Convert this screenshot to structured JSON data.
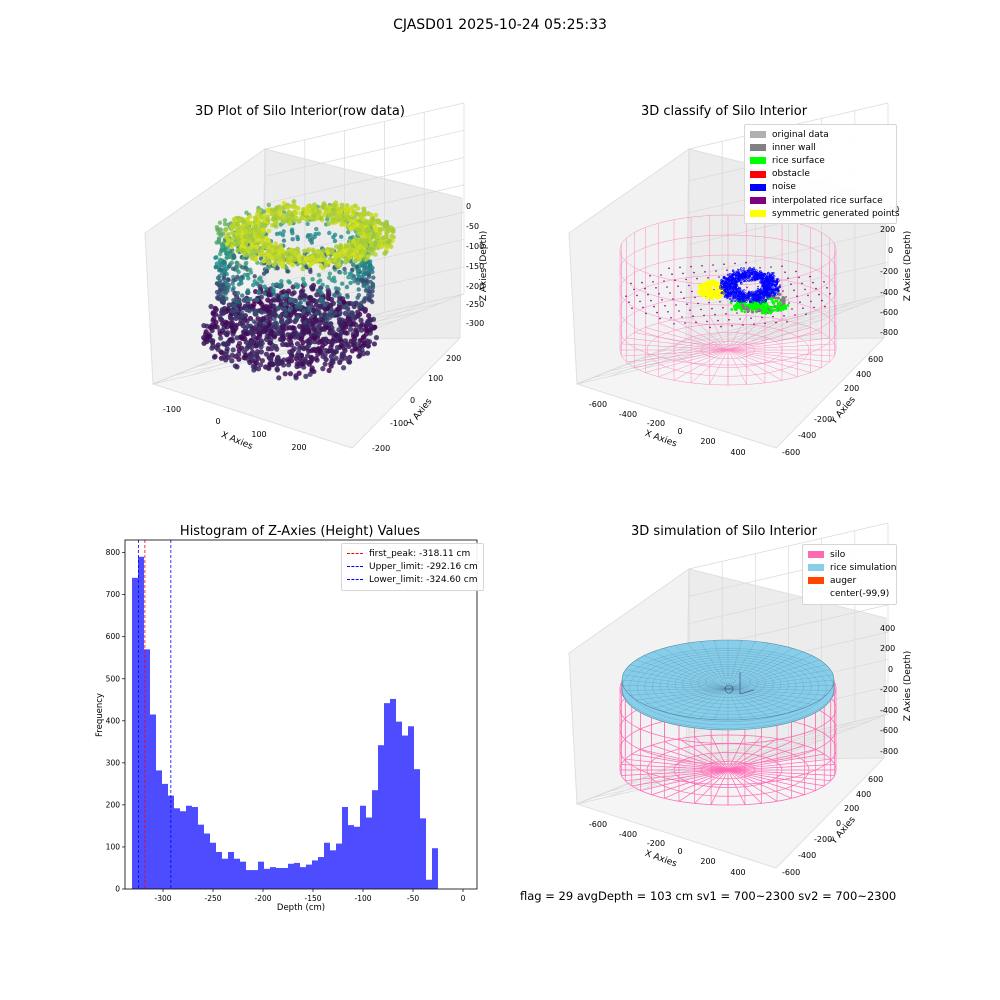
{
  "suptitle": "CJASD01 2025-10-24 05:25:33",
  "footer": "flag = 29  avgDepth = 103 cm  sv1 = 700~2300  sv2 = 700~2300",
  "colors": {
    "raw_low": "#440154",
    "raw_mid": "#2a9d8f",
    "raw_high": "#d8e219",
    "original": "#b0b0b0",
    "inner_wall": "#808080",
    "rice_surface": "#00ff00",
    "obstacle": "#ff0000",
    "noise": "#0000ff",
    "interpolated": "#800080",
    "symmetric": "#ffff00",
    "silo": "#ff69b4",
    "rice_sim": "#87ceeb",
    "auger": "#ff4500",
    "hist_bar": "#4d4dff",
    "peak_line": "#ff0000",
    "limit_line": "#0000ff"
  },
  "chart_data": [
    {
      "type": "scatter",
      "subtype": "3d-scatter",
      "title": "3D Plot of Silo Interior(row data)",
      "xlabel": "X Axies",
      "ylabel": "Y Axies",
      "zlabel": "Z Axies (Depth)",
      "x_ticks": [
        "-100",
        "0",
        "100",
        "200"
      ],
      "y_ticks": [
        "-200",
        "-100",
        "0",
        "100",
        "200"
      ],
      "z_ticks": [
        "0",
        "-50",
        "-100",
        "-150",
        "-200",
        "-250",
        "-300"
      ],
      "zlim": [
        -330,
        0
      ],
      "colormap": "viridis"
    },
    {
      "type": "scatter",
      "subtype": "3d-scatter",
      "title": "3D classify of Silo Interior",
      "xlabel": "X Axies",
      "ylabel": "Y Axies",
      "zlabel": "Z Axies (Depth)",
      "x_ticks": [
        "-600",
        "-400",
        "-200",
        "0",
        "200",
        "400"
      ],
      "y_ticks": [
        "-600",
        "-400",
        "-200",
        "0",
        "200",
        "400",
        "600"
      ],
      "z_ticks": [
        "200",
        "0",
        "-200",
        "-400",
        "-600",
        "-800"
      ],
      "z_top_tick_partial": "00",
      "legend": {
        "position": "top-right",
        "entries": [
          {
            "label": "original data",
            "color": "#b0b0b0"
          },
          {
            "label": "inner wall",
            "color": "#808080"
          },
          {
            "label": "rice surface",
            "color": "#00ff00"
          },
          {
            "label": "obstacle",
            "color": "#ff0000"
          },
          {
            "label": "noise",
            "color": "#0000ff"
          },
          {
            "label": "interpolated rice surface",
            "color": "#800080"
          },
          {
            "label": "symmetric generated points",
            "color": "#ffff00"
          }
        ]
      }
    },
    {
      "type": "bar",
      "subtype": "histogram",
      "title": "Histogram of Z-Axies (Height) Values",
      "xlabel": "Depth (cm)",
      "ylabel": "Frequency",
      "xlim": [
        -338,
        14
      ],
      "ylim": [
        0,
        830
      ],
      "x_ticks": [
        -300,
        -250,
        -200,
        -150,
        -100,
        -50,
        0
      ],
      "y_ticks": [
        0,
        100,
        200,
        300,
        400,
        500,
        600,
        700,
        800
      ],
      "bin_start": -331,
      "bin_width": 6,
      "values": [
        740,
        790,
        570,
        415,
        282,
        250,
        222,
        192,
        185,
        198,
        195,
        153,
        132,
        110,
        88,
        72,
        88,
        72,
        65,
        45,
        45,
        65,
        48,
        52,
        50,
        50,
        60,
        62,
        52,
        58,
        68,
        76,
        110,
        92,
        108,
        195,
        152,
        148,
        198,
        170,
        235,
        342,
        442,
        452,
        398,
        365,
        387,
        285,
        168,
        22,
        97
      ],
      "lines": [
        {
          "label": "first_peak: -318.11 cm",
          "x": -318.11,
          "color": "#ff0000"
        },
        {
          "label": "Upper_limit: -292.16 cm",
          "x": -292.16,
          "color": "#0000ff"
        },
        {
          "label": "Lower_limit: -324.60 cm",
          "x": -324.6,
          "color": "#0000ff"
        }
      ],
      "legend": {
        "position": "top-right"
      }
    },
    {
      "type": "area",
      "subtype": "3d-surface",
      "title": "3D simulation of Silo Interior",
      "xlabel": "X Axies",
      "ylabel": "Y Axies",
      "zlabel": "Z Axies (Depth)",
      "x_ticks": [
        "-600",
        "-400",
        "-200",
        "0",
        "200",
        "400"
      ],
      "y_ticks": [
        "-600",
        "-400",
        "-200",
        "0",
        "200",
        "400",
        "600"
      ],
      "z_ticks": [
        "400",
        "200",
        "0",
        "-200",
        "-400",
        "-600",
        "-800"
      ],
      "legend": {
        "position": "top-right",
        "entries": [
          {
            "label": "silo",
            "color": "#ff69b4"
          },
          {
            "label": "rice simulation",
            "color": "#87ceeb"
          },
          {
            "label": "auger",
            "color": "#ff4500"
          },
          {
            "label": "center(-99,9)",
            "color": "transparent"
          }
        ]
      }
    }
  ]
}
